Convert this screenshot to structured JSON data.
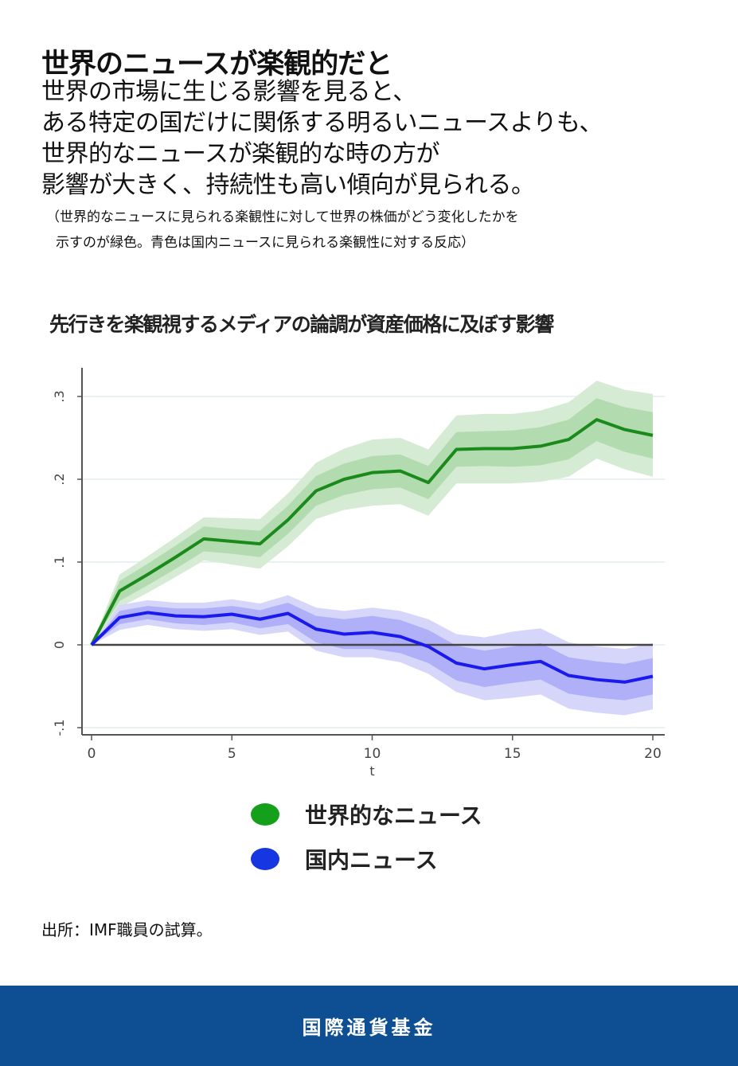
{
  "header": {
    "title": "世界のニュースが楽観的だと",
    "lead": [
      "世界の市場に生じる影響を見ると、",
      "ある特定の国だけに関係する明るいニュースよりも、",
      "世界的なニュースが楽観的な時の方が",
      "影響が大きく、持続性も高い傾向が見られる。"
    ],
    "note": [
      "（世界的なニュースに見られる楽観性に対して世界の株価がどう変化したかを",
      "示すのが緑色。青色は国内ニュースに見られる楽観性に対する反応）"
    ]
  },
  "chart_data": {
    "type": "line",
    "title": "先行きを楽観視するメディアの論調が資産価格に及ぼす影響",
    "xlabel": "t",
    "ylabel": "",
    "xlim": [
      0,
      20
    ],
    "ylim": [
      -0.11,
      0.33
    ],
    "xticks": [
      "0",
      "5",
      "10",
      "15",
      "20"
    ],
    "xtick_values": [
      0,
      5,
      10,
      15,
      20
    ],
    "yticks": [
      "-.1",
      "0",
      ".1",
      ".2",
      ".3"
    ],
    "ytick_values": [
      -0.1,
      0,
      0.1,
      0.2,
      0.3
    ],
    "grid": true,
    "zero_line": true,
    "x": [
      0,
      1,
      2,
      3,
      4,
      5,
      6,
      7,
      8,
      9,
      10,
      11,
      12,
      13,
      14,
      15,
      16,
      17,
      18,
      19,
      20
    ],
    "series": [
      {
        "name": "世界的なニュース",
        "color": "#1a8a1a",
        "values": [
          0,
          0.065,
          0.085,
          0.106,
          0.128,
          0.125,
          0.122,
          0.151,
          0.186,
          0.2,
          0.208,
          0.21,
          0.196,
          0.236,
          0.237,
          0.237,
          0.24,
          0.248,
          0.272,
          0.26,
          0.253
        ],
        "inner_band_halfwidth": [
          0,
          0.012,
          0.013,
          0.014,
          0.015,
          0.015,
          0.016,
          0.017,
          0.018,
          0.019,
          0.02,
          0.02,
          0.02,
          0.021,
          0.021,
          0.022,
          0.023,
          0.024,
          0.026,
          0.027,
          0.028
        ],
        "outer_band_halfwidth": [
          0,
          0.02,
          0.022,
          0.024,
          0.026,
          0.028,
          0.03,
          0.032,
          0.034,
          0.037,
          0.04,
          0.04,
          0.04,
          0.041,
          0.042,
          0.042,
          0.043,
          0.045,
          0.047,
          0.048,
          0.05
        ]
      },
      {
        "name": "国内ニュース",
        "color": "#1a1aee",
        "values": [
          0,
          0.033,
          0.039,
          0.035,
          0.034,
          0.037,
          0.031,
          0.038,
          0.019,
          0.013,
          0.015,
          0.01,
          -0.002,
          -0.022,
          -0.029,
          -0.024,
          -0.02,
          -0.037,
          -0.042,
          -0.045,
          -0.038
        ],
        "inner_band_halfwidth": [
          0,
          0.008,
          0.008,
          0.009,
          0.01,
          0.01,
          0.011,
          0.013,
          0.016,
          0.018,
          0.02,
          0.02,
          0.02,
          0.021,
          0.022,
          0.022,
          0.022,
          0.022,
          0.022,
          0.022,
          0.022
        ],
        "outer_band_halfwidth": [
          0,
          0.015,
          0.015,
          0.016,
          0.017,
          0.018,
          0.019,
          0.022,
          0.026,
          0.028,
          0.03,
          0.031,
          0.033,
          0.035,
          0.038,
          0.04,
          0.04,
          0.04,
          0.04,
          0.04,
          0.04
        ]
      }
    ],
    "legend": {
      "placement": "bottom",
      "entries": [
        "世界的なニュース",
        "国内ニュース"
      ]
    }
  },
  "source": "出所：IMF職員の試算。",
  "footer": {
    "label": "国際通貨基金",
    "color": "#0d4f92"
  }
}
